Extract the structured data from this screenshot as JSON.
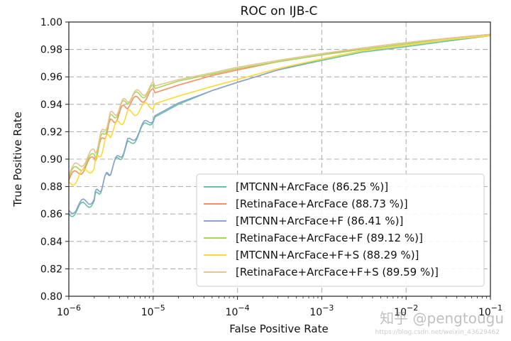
{
  "chart_data": {
    "type": "line",
    "title": "ROC on IJB-C",
    "xlabel": "False Positive Rate",
    "ylabel": "True Positive Rate",
    "xscale": "log",
    "xlim": [
      1e-06,
      0.1
    ],
    "ylim": [
      0.8,
      1.0
    ],
    "grid": true,
    "legend_position": "lower-right",
    "x_tick_labels": [
      {
        "base": "10",
        "exp": "−6",
        "value": 1e-06
      },
      {
        "base": "10",
        "exp": "−5",
        "value": 1e-05
      },
      {
        "base": "10",
        "exp": "−4",
        "value": 0.0001
      },
      {
        "base": "10",
        "exp": "−3",
        "value": 0.001
      },
      {
        "base": "10",
        "exp": "−2",
        "value": 0.01
      },
      {
        "base": "10",
        "exp": "−1",
        "value": 0.1
      }
    ],
    "y_ticks": [
      0.8,
      0.82,
      0.84,
      0.86,
      0.88,
      0.9,
      0.92,
      0.94,
      0.96,
      0.98,
      1.0
    ],
    "y_tick_labels": [
      "0.80",
      "0.82",
      "0.84",
      "0.86",
      "0.88",
      "0.90",
      "0.92",
      "0.94",
      "0.96",
      "0.98",
      "1.00"
    ],
    "x": [
      1e-06,
      2e-06,
      3e-06,
      5e-06,
      1e-05,
      2e-05,
      5e-05,
      0.0001,
      0.0003,
      0.001,
      0.003,
      0.01,
      0.03,
      0.1
    ],
    "series": [
      {
        "name": "[MTCNN+ArcFace (86.25 %)]",
        "color": "#66c2a5",
        "values": [
          0.86,
          0.87,
          0.89,
          0.91,
          0.93,
          0.94,
          0.95,
          0.956,
          0.965,
          0.972,
          0.978,
          0.982,
          0.986,
          0.99
        ]
      },
      {
        "name": "[RetinaFace+ArcFace (88.73 %)]",
        "color": "#fc8d62",
        "values": [
          0.885,
          0.9,
          0.925,
          0.94,
          0.948,
          0.954,
          0.961,
          0.965,
          0.971,
          0.976,
          0.981,
          0.985,
          0.988,
          0.991
        ]
      },
      {
        "name": "[MTCNN+ArcFace+F (86.41 %)]",
        "color": "#8da0cb",
        "values": [
          0.862,
          0.872,
          0.89,
          0.912,
          0.931,
          0.941,
          0.95,
          0.956,
          0.965,
          0.973,
          0.979,
          0.983,
          0.987,
          0.99
        ]
      },
      {
        "name": "[RetinaFace+ArcFace+F (89.12 %)]",
        "color": "#a6d854",
        "values": [
          0.888,
          0.902,
          0.928,
          0.943,
          0.951,
          0.957,
          0.962,
          0.966,
          0.971,
          0.976,
          0.98,
          0.984,
          0.988,
          0.991
        ]
      },
      {
        "name": "[MTCNN+ArcFace+F+S (88.29 %)]",
        "color": "#ffd92f",
        "values": [
          0.882,
          0.895,
          0.918,
          0.933,
          0.94,
          0.946,
          0.953,
          0.958,
          0.966,
          0.973,
          0.979,
          0.983,
          0.987,
          0.99
        ]
      },
      {
        "name": "[RetinaFace+ArcFace+F+S (89.59 %)]",
        "color": "#e5c494",
        "values": [
          0.89,
          0.905,
          0.93,
          0.944,
          0.953,
          0.958,
          0.963,
          0.967,
          0.972,
          0.977,
          0.981,
          0.985,
          0.988,
          0.991
        ]
      }
    ]
  },
  "watermark": {
    "text": "知乎 @pengtougu",
    "url": "https://blog.csdn.net/weixin_43629462"
  }
}
